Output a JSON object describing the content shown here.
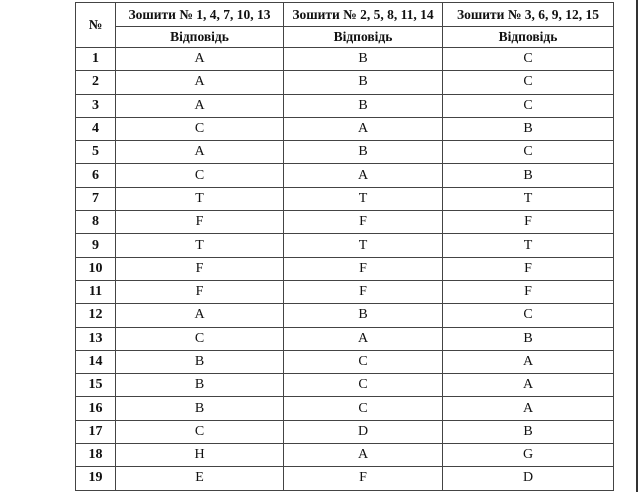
{
  "table": {
    "num_header": "№",
    "columns": [
      "Зошити № 1, 4, 7, 10, 13",
      "Зошити № 2, 5, 8, 11, 14",
      "Зошити № 3, 6, 9, 12, 15"
    ],
    "subheader": "Відповідь",
    "rows": [
      [
        "1",
        "A",
        "B",
        "C"
      ],
      [
        "2",
        "A",
        "B",
        "C"
      ],
      [
        "3",
        "A",
        "B",
        "C"
      ],
      [
        "4",
        "C",
        "A",
        "B"
      ],
      [
        "5",
        "A",
        "B",
        "C"
      ],
      [
        "6",
        "C",
        "A",
        "B"
      ],
      [
        "7",
        "T",
        "T",
        "T"
      ],
      [
        "8",
        "F",
        "F",
        "F"
      ],
      [
        "9",
        "T",
        "T",
        "T"
      ],
      [
        "10",
        "F",
        "F",
        "F"
      ],
      [
        "11",
        "F",
        "F",
        "F"
      ],
      [
        "12",
        "A",
        "B",
        "C"
      ],
      [
        "13",
        "C",
        "A",
        "B"
      ],
      [
        "14",
        "B",
        "C",
        "A"
      ],
      [
        "15",
        "B",
        "C",
        "A"
      ],
      [
        "16",
        "B",
        "C",
        "A"
      ],
      [
        "17",
        "C",
        "D",
        "B"
      ],
      [
        "18",
        "H",
        "A",
        "G"
      ],
      [
        "19",
        "E",
        "F",
        "D"
      ]
    ]
  }
}
